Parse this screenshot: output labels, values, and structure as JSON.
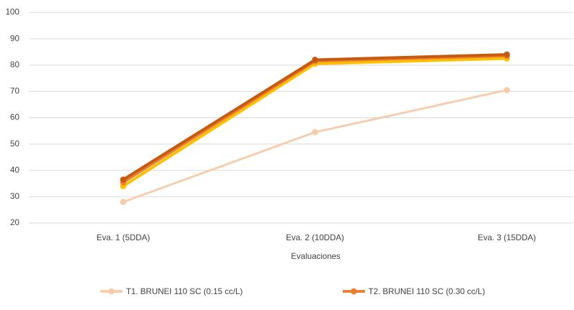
{
  "chart_data": {
    "type": "line",
    "x_label": "Evaluaciones",
    "categories": [
      "Eva. 1 (5DDA)",
      "Eva. 2 (10DDA)",
      "Eva. 3 (15DDA)"
    ],
    "series": [
      {
        "name": "T1. BRUNEI 110 SC (0.15 cc/L)",
        "color": "#f8cbad",
        "values": [
          28,
          54.5,
          70.5
        ]
      },
      {
        "color": "#ffc000",
        "values": [
          34,
          80.5,
          82.5
        ]
      },
      {
        "name": "T2.  BRUNEI 110 SC (0.30 cc/L)",
        "color": "#ed7d31",
        "values": [
          35.5,
          81.5,
          83.5
        ]
      },
      {
        "color": "#c55a11",
        "values": [
          36.5,
          82,
          84
        ]
      }
    ],
    "ylim": [
      20,
      100
    ],
    "yticks": [
      20,
      30,
      40,
      50,
      60,
      70,
      80,
      90,
      100
    ],
    "grid": true
  }
}
